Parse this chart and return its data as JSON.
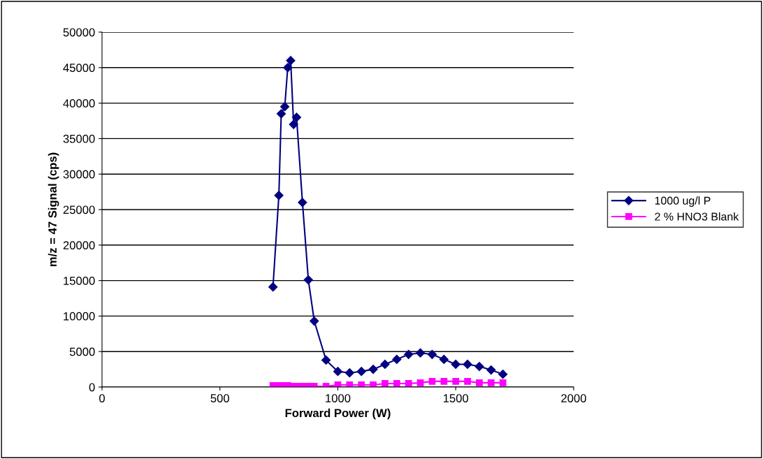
{
  "chart_data": {
    "type": "line",
    "xlabel": "Forward Power (W)",
    "ylabel": "m/z = 47 Signal (cps)",
    "series": [
      {
        "name": "1000 ug/l P",
        "color": "#000080",
        "marker": "diamond",
        "x": [
          725,
          750,
          760,
          775,
          787.5,
          800,
          812.5,
          825,
          850,
          875,
          900,
          950,
          1000,
          1050,
          1100,
          1150,
          1200,
          1250,
          1300,
          1350,
          1400,
          1450,
          1500,
          1550,
          1600,
          1650,
          1700
        ],
        "values": [
          14100,
          27000,
          38500,
          39500,
          45000,
          46000,
          37000,
          38000,
          26000,
          15100,
          9300,
          3800,
          2200,
          2000,
          2200,
          2500,
          3200,
          3900,
          4600,
          4800,
          4600,
          3900,
          3200,
          3200,
          2900,
          2400,
          1800
        ]
      },
      {
        "name": "2 % HNO3 Blank",
        "color": "#ff00ff",
        "marker": "square",
        "x": [
          725,
          750,
          760,
          775,
          787.5,
          800,
          812.5,
          825,
          850,
          875,
          900,
          950,
          1000,
          1050,
          1100,
          1150,
          1200,
          1250,
          1300,
          1350,
          1400,
          1450,
          1500,
          1550,
          1600,
          1650,
          1700
        ],
        "values": [
          200,
          200,
          200,
          200,
          200,
          100,
          100,
          100,
          100,
          100,
          100,
          100,
          300,
          300,
          300,
          300,
          500,
          500,
          500,
          600,
          800,
          800,
          800,
          800,
          600,
          600,
          600
        ]
      }
    ],
    "xlim": [
      0,
      2000
    ],
    "xticks": [
      0,
      500,
      1000,
      1500,
      2000
    ],
    "ylim": [
      0,
      50000
    ],
    "yticks": [
      0,
      5000,
      10000,
      15000,
      20000,
      25000,
      30000,
      35000,
      40000,
      45000,
      50000
    ],
    "grid": "y",
    "legend": "right"
  }
}
